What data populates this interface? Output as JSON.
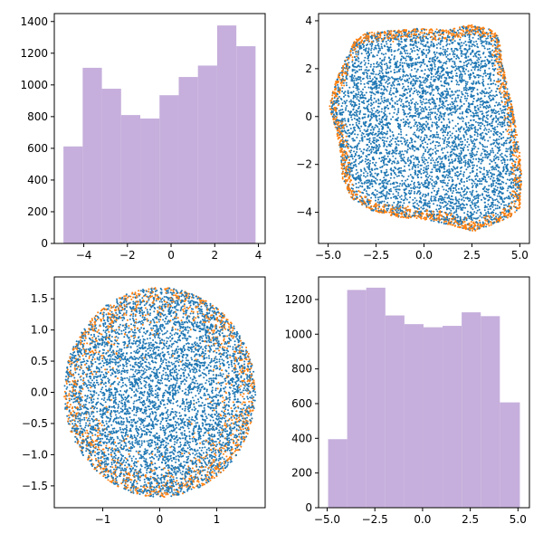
{
  "colors": {
    "bar": "#c6afdc",
    "blue": "#1f77b4",
    "orange": "#ff7f0e"
  },
  "chart_data": [
    {
      "type": "bar",
      "panel": "top-left",
      "title": "",
      "xlabel": "",
      "ylabel": "",
      "bin_edges": [
        -4.93,
        -4.05,
        -3.17,
        -2.29,
        -1.41,
        -0.53,
        0.35,
        1.23,
        2.11,
        2.99,
        3.87
      ],
      "values": [
        612,
        1108,
        976,
        810,
        788,
        935,
        1050,
        1122,
        1375,
        1244
      ],
      "xlim": [
        -5.35,
        4.31
      ],
      "ylim": [
        0,
        1450
      ],
      "x_ticks": [
        -4,
        -2,
        0,
        2,
        4
      ],
      "y_ticks": [
        0,
        200,
        400,
        600,
        800,
        1000,
        1200,
        1400
      ],
      "x_tick_labels": [
        "−4",
        "−2",
        "0",
        "2",
        "4"
      ],
      "y_tick_labels": [
        "0",
        "200",
        "400",
        "600",
        "800",
        "1000",
        "1200",
        "1400"
      ]
    },
    {
      "type": "scatter",
      "panel": "top-right",
      "title": "",
      "xlabel": "",
      "ylabel": "",
      "description_shape": "irregular blob, orange rim points",
      "xlim": [
        -5.5,
        5.5
      ],
      "ylim": [
        -5.3,
        4.3
      ],
      "x_ticks": [
        -5.0,
        -2.5,
        0.0,
        2.5,
        5.0
      ],
      "y_ticks": [
        -4,
        -2,
        0,
        2,
        4
      ],
      "x_tick_labels": [
        "−5.0",
        "−2.5",
        "0.0",
        "2.5",
        "5.0"
      ],
      "y_tick_labels": [
        "−4",
        "−2",
        "0",
        "2",
        "4"
      ],
      "boundary": [
        [
          -4.95,
          0.4
        ],
        [
          -4.7,
          1.3
        ],
        [
          -4.2,
          2.2
        ],
        [
          -3.6,
          3.2
        ],
        [
          -3.0,
          3.5
        ],
        [
          -1.5,
          3.6
        ],
        [
          0,
          3.7
        ],
        [
          1.2,
          3.6
        ],
        [
          2.4,
          3.85
        ],
        [
          3.3,
          3.7
        ],
        [
          3.9,
          3.4
        ],
        [
          4.1,
          2.2
        ],
        [
          4.6,
          0.5
        ],
        [
          5.0,
          -1.5
        ],
        [
          5.1,
          -2.6
        ],
        [
          5.0,
          -3.8
        ],
        [
          4.5,
          -4.2
        ],
        [
          3.6,
          -4.5
        ],
        [
          2.6,
          -4.8
        ],
        [
          1.2,
          -4.5
        ],
        [
          0,
          -4.3
        ],
        [
          -1.5,
          -4.2
        ],
        [
          -2.8,
          -3.9
        ],
        [
          -3.8,
          -3.4
        ],
        [
          -4.3,
          -2.5
        ],
        [
          -4.35,
          -1.5
        ],
        [
          -4.6,
          -0.5
        ]
      ],
      "series": [
        {
          "color": "blue",
          "n": 5200,
          "region": "interior"
        },
        {
          "color": "orange",
          "n": 1400,
          "region": "rim"
        }
      ]
    },
    {
      "type": "scatter",
      "panel": "bottom-left",
      "title": "",
      "xlabel": "",
      "ylabel": "",
      "shape": "disk",
      "radius": 1.68,
      "xlim": [
        -1.85,
        1.85
      ],
      "ylim": [
        -1.85,
        1.85
      ],
      "x_ticks": [
        -1,
        0,
        1
      ],
      "y_ticks": [
        -1.5,
        -1.0,
        -0.5,
        0.0,
        0.5,
        1.0,
        1.5
      ],
      "x_tick_labels": [
        "−1",
        "0",
        "1"
      ],
      "y_tick_labels": [
        "−1.5",
        "−1.0",
        "−0.5",
        "0.0",
        "0.5",
        "1.0",
        "1.5"
      ],
      "series": [
        {
          "color": "blue",
          "n": 5200,
          "region": "interior"
        },
        {
          "color": "orange",
          "n": 1300,
          "region": "rim"
        }
      ]
    },
    {
      "type": "bar",
      "panel": "bottom-right",
      "title": "",
      "xlabel": "",
      "ylabel": "",
      "bin_edges": [
        -4.95,
        -3.95,
        -2.95,
        -1.95,
        -0.95,
        0.05,
        1.05,
        2.05,
        3.05,
        4.05,
        5.1
      ],
      "values": [
        395,
        1255,
        1268,
        1108,
        1058,
        1040,
        1048,
        1126,
        1104,
        607
      ],
      "xlim": [
        -5.45,
        5.6
      ],
      "ylim": [
        0,
        1330
      ],
      "x_ticks": [
        -5.0,
        -2.5,
        0.0,
        2.5,
        5.0
      ],
      "y_ticks": [
        0,
        200,
        400,
        600,
        800,
        1000,
        1200
      ],
      "x_tick_labels": [
        "−5.0",
        "−2.5",
        "0.0",
        "2.5",
        "5.0"
      ],
      "y_tick_labels": [
        "0",
        "200",
        "400",
        "600",
        "800",
        "1000",
        "1200"
      ]
    }
  ]
}
